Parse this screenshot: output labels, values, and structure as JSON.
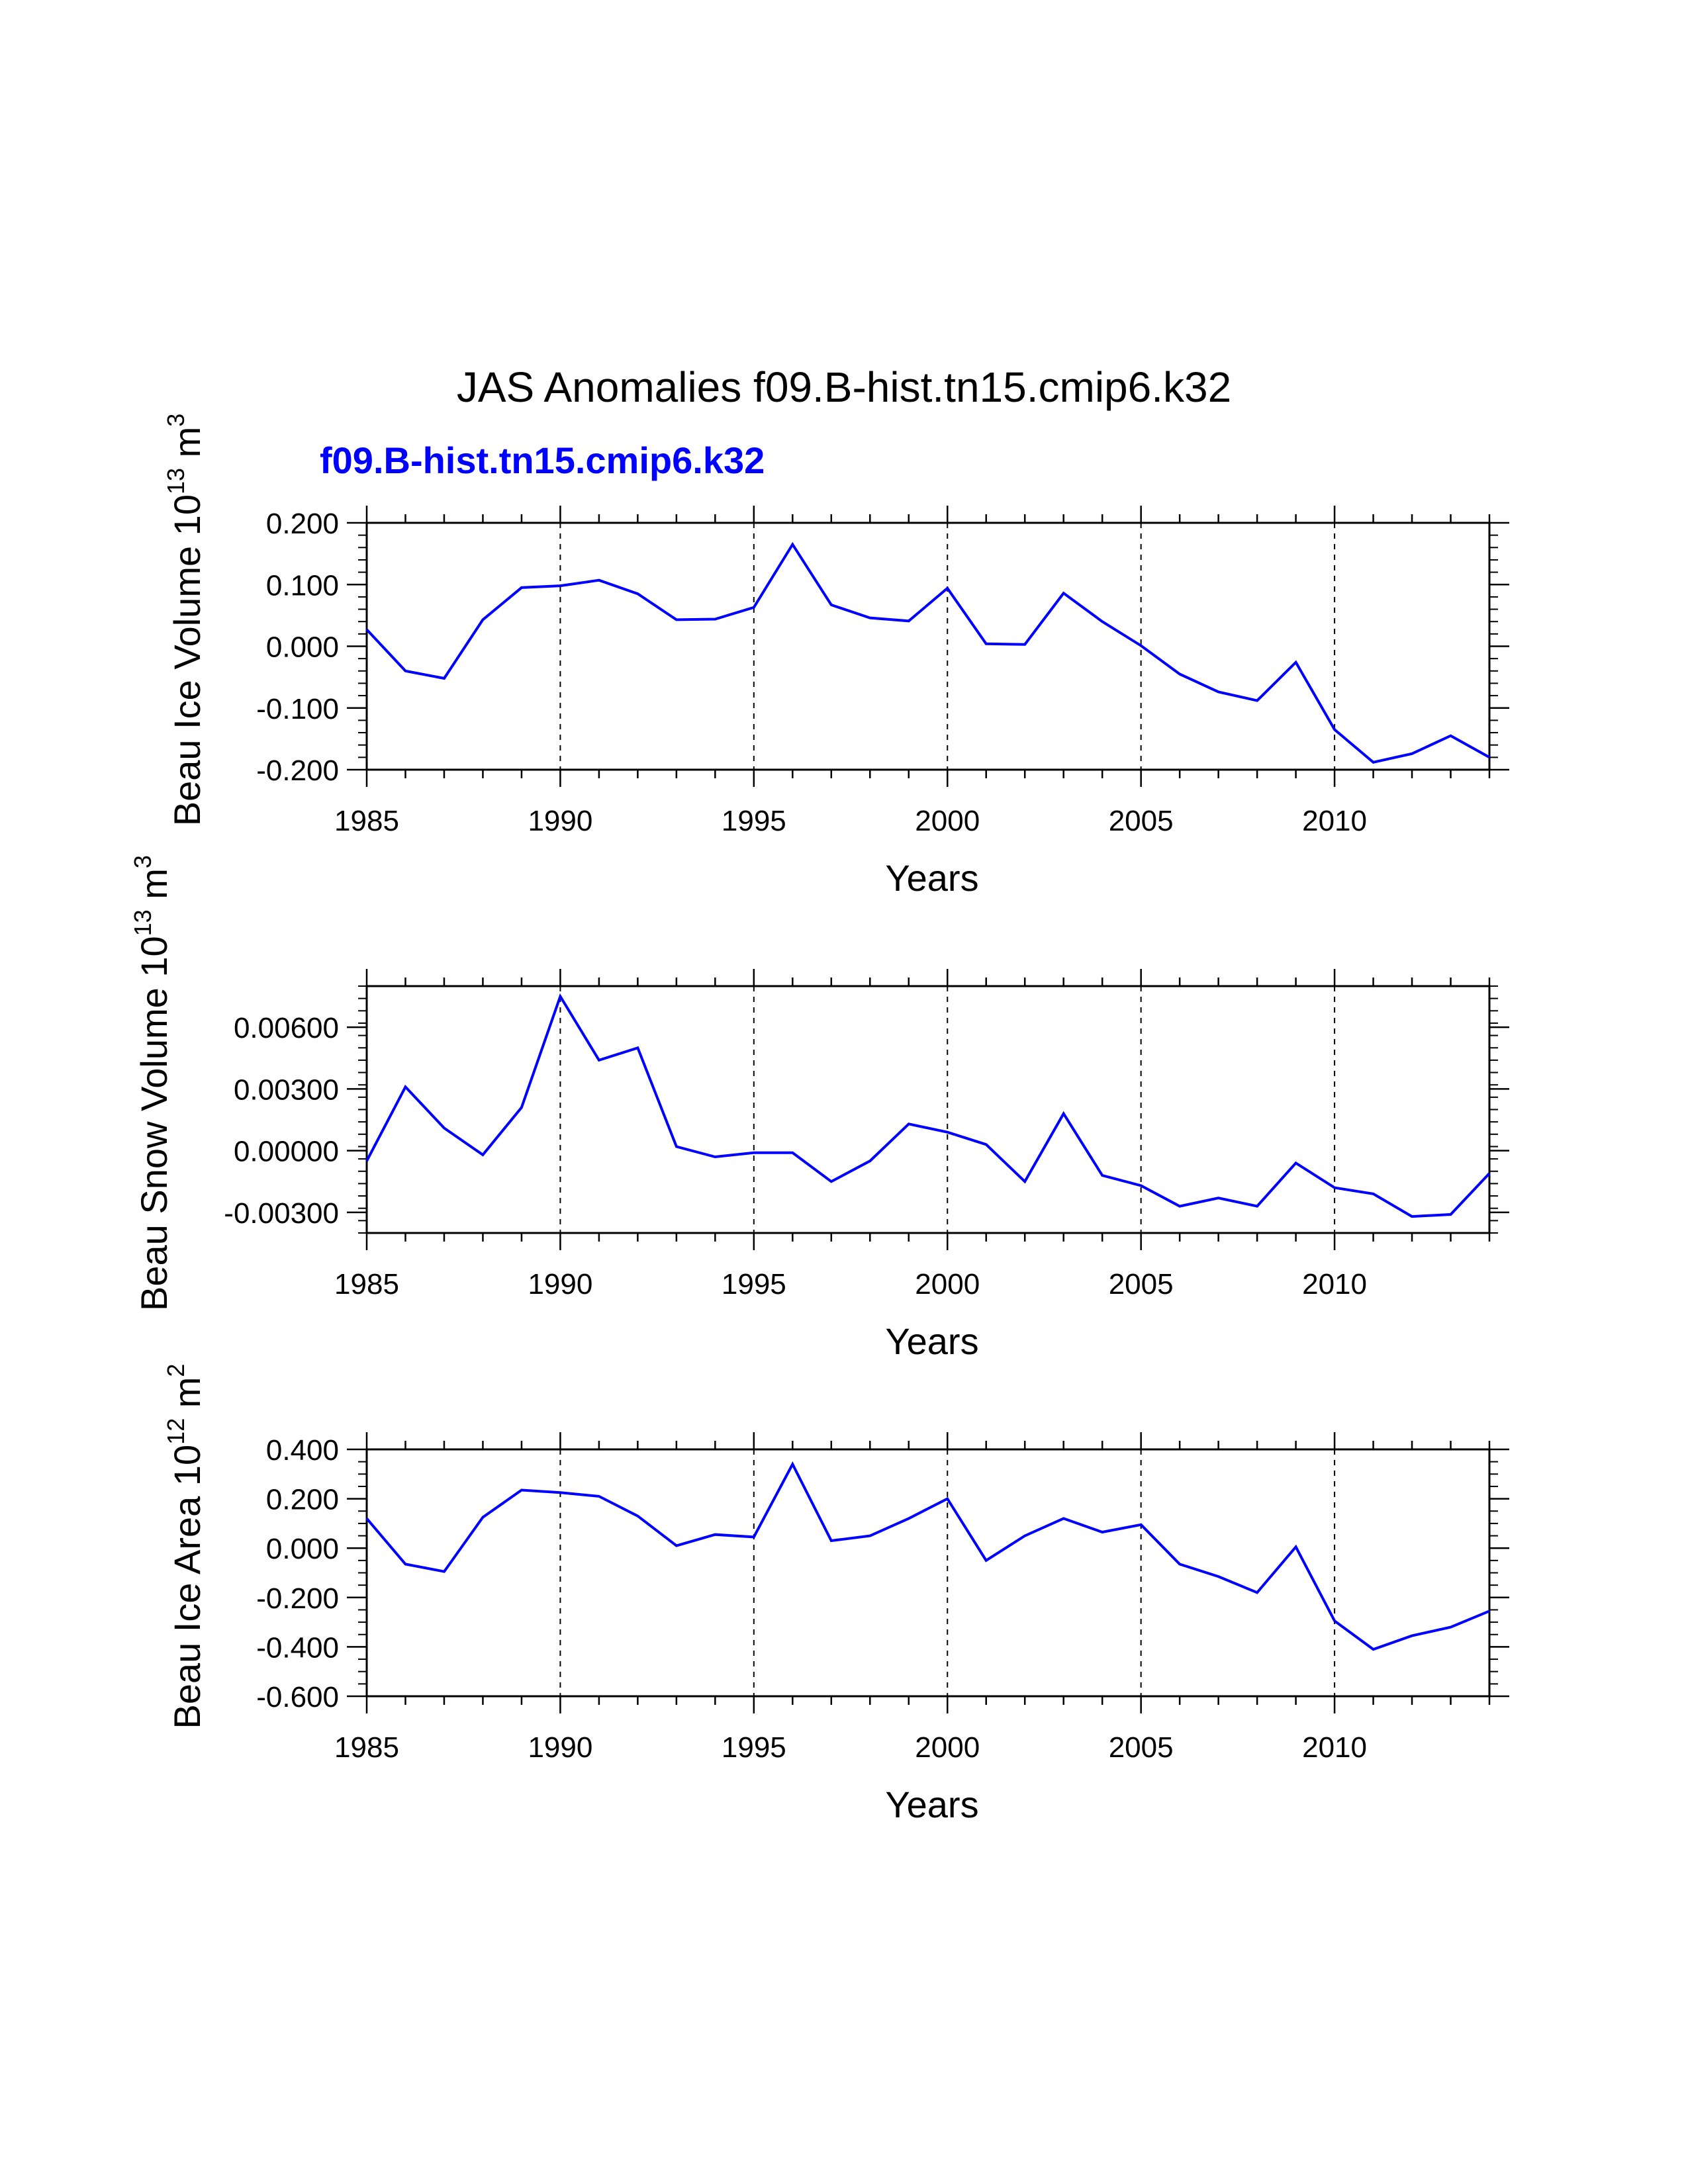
{
  "figure": {
    "title": "JAS Anomalies f09.B-hist.tn15.cmip6.k32",
    "series_label": "f09.B-hist.tn15.cmip6.k32",
    "line_color": "#0000ff"
  },
  "chart_data": [
    {
      "type": "line",
      "title": "JAS Anomalies f09.B-hist.tn15.cmip6.k32",
      "xlabel": "Years",
      "ylabel": {
        "text": "Beau Ice Volume 10",
        "exp": "13",
        "unit": " m",
        "unit_exp": "3"
      },
      "xlim": [
        1985,
        2014
      ],
      "ylim": [
        -0.2,
        0.2
      ],
      "x_ticks": [
        1985,
        1990,
        1995,
        2000,
        2005,
        2010
      ],
      "x_tick_labels": [
        "1985",
        "1990",
        "1995",
        "2000",
        "2005",
        "2010"
      ],
      "y_ticks": [
        -0.2,
        -0.1,
        0.0,
        0.1,
        0.2
      ],
      "y_tick_labels": [
        "-0.200",
        "-0.100",
        "0.000",
        "0.100",
        "0.200"
      ],
      "y_minor_step": 0.02,
      "grid_x": [
        1990,
        1995,
        2000,
        2005,
        2010
      ],
      "series": [
        {
          "name": "f09.B-hist.tn15.cmip6.k32",
          "x": [
            1985,
            1986,
            1987,
            1988,
            1989,
            1990,
            1991,
            1992,
            1993,
            1994,
            1995,
            1996,
            1997,
            1998,
            1999,
            2000,
            2001,
            2002,
            2003,
            2004,
            2005,
            2006,
            2007,
            2008,
            2009,
            2010,
            2011,
            2012,
            2013,
            2014
          ],
          "values": [
            0.027,
            -0.04,
            -0.052,
            0.043,
            0.095,
            0.098,
            0.107,
            0.085,
            0.043,
            0.044,
            0.063,
            0.165,
            0.067,
            0.046,
            0.041,
            0.094,
            0.004,
            0.003,
            0.086,
            0.04,
            0.001,
            -0.045,
            -0.074,
            -0.088,
            -0.026,
            -0.135,
            -0.188,
            -0.174,
            -0.145,
            -0.18
          ]
        }
      ]
    },
    {
      "type": "line",
      "xlabel": "Years",
      "ylabel": {
        "text": "Beau Snow Volume 10",
        "exp": "13",
        "unit": " m",
        "unit_exp": "3"
      },
      "xlim": [
        1985,
        2014
      ],
      "ylim": [
        -0.004,
        0.008
      ],
      "x_ticks": [
        1985,
        1990,
        1995,
        2000,
        2005,
        2010
      ],
      "x_tick_labels": [
        "1985",
        "1990",
        "1995",
        "2000",
        "2005",
        "2010"
      ],
      "y_ticks": [
        -0.003,
        0.0,
        0.003,
        0.006
      ],
      "y_tick_labels": [
        "-0.00300",
        "0.00000",
        "0.00300",
        "0.00600"
      ],
      "y_minor_step": 0.0006,
      "grid_x": [
        1990,
        1995,
        2000,
        2005,
        2010
      ],
      "series": [
        {
          "name": "f09.B-hist.tn15.cmip6.k32",
          "x": [
            1985,
            1986,
            1987,
            1988,
            1989,
            1990,
            1991,
            1992,
            1993,
            1994,
            1995,
            1996,
            1997,
            1998,
            1999,
            2000,
            2001,
            2002,
            2003,
            2004,
            2005,
            2006,
            2007,
            2008,
            2009,
            2010,
            2011,
            2012,
            2013,
            2014
          ],
          "values": [
            -0.0005,
            0.0031,
            0.0011,
            -0.0002,
            0.0021,
            0.0075,
            0.0044,
            0.005,
            0.0002,
            -0.0003,
            -0.0001,
            -0.0001,
            -0.0015,
            -0.0005,
            0.0013,
            0.0009,
            0.0003,
            -0.0015,
            0.0018,
            -0.0012,
            -0.0017,
            -0.0027,
            -0.0023,
            -0.0027,
            -0.0006,
            -0.0018,
            -0.0021,
            -0.0032,
            -0.0031,
            -0.0011
          ]
        }
      ]
    },
    {
      "type": "line",
      "xlabel": "Years",
      "ylabel": {
        "text": "Beau Ice Area 10",
        "exp": "12",
        "unit": " m",
        "unit_exp": "2"
      },
      "xlim": [
        1985,
        2014
      ],
      "ylim": [
        -0.6,
        0.4
      ],
      "x_ticks": [
        1985,
        1990,
        1995,
        2000,
        2005,
        2010
      ],
      "x_tick_labels": [
        "1985",
        "1990",
        "1995",
        "2000",
        "2005",
        "2010"
      ],
      "y_ticks": [
        -0.6,
        -0.4,
        -0.2,
        0.0,
        0.2,
        0.4
      ],
      "y_tick_labels": [
        "-0.600",
        "-0.400",
        "-0.200",
        "0.000",
        "0.200",
        "0.400"
      ],
      "y_minor_step": 0.05,
      "grid_x": [
        1990,
        1995,
        2000,
        2005,
        2010
      ],
      "series": [
        {
          "name": "f09.B-hist.tn15.cmip6.k32",
          "x": [
            1985,
            1986,
            1987,
            1988,
            1989,
            1990,
            1991,
            1992,
            1993,
            1994,
            1995,
            1996,
            1997,
            1998,
            1999,
            2000,
            2001,
            2002,
            2003,
            2004,
            2005,
            2006,
            2007,
            2008,
            2009,
            2010,
            2011,
            2012,
            2013,
            2014
          ],
          "values": [
            0.12,
            -0.065,
            -0.095,
            0.125,
            0.235,
            0.225,
            0.21,
            0.13,
            0.01,
            0.055,
            0.045,
            0.34,
            0.03,
            0.05,
            0.12,
            0.2,
            -0.05,
            0.05,
            0.12,
            0.065,
            0.095,
            -0.065,
            -0.115,
            -0.18,
            0.005,
            -0.295,
            -0.41,
            -0.355,
            -0.32,
            -0.255
          ]
        }
      ]
    }
  ]
}
